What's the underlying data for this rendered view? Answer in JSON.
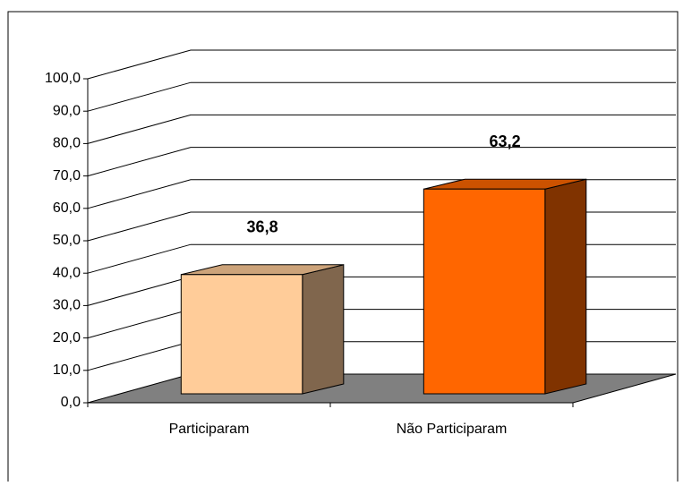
{
  "chart_data": {
    "type": "bar3d",
    "categories": [
      "Participaram",
      "Não Participaram"
    ],
    "values": [
      36.8,
      63.2
    ],
    "value_labels": [
      "36,8",
      "63,2"
    ],
    "colors": [
      "#FFCC99",
      "#FF6600"
    ],
    "ylim": [
      0,
      100
    ],
    "yticks": [
      {
        "value": 0,
        "label": "0,0"
      },
      {
        "value": 10,
        "label": "10,0"
      },
      {
        "value": 20,
        "label": "20,0"
      },
      {
        "value": 30,
        "label": "30,0"
      },
      {
        "value": 40,
        "label": "40,0"
      },
      {
        "value": 50,
        "label": "50,0"
      },
      {
        "value": 60,
        "label": "60,0"
      },
      {
        "value": 70,
        "label": "70,0"
      },
      {
        "value": 80,
        "label": "80,0"
      },
      {
        "value": 90,
        "label": "90,0"
      },
      {
        "value": 100,
        "label": "100,0"
      }
    ],
    "grid": true
  }
}
